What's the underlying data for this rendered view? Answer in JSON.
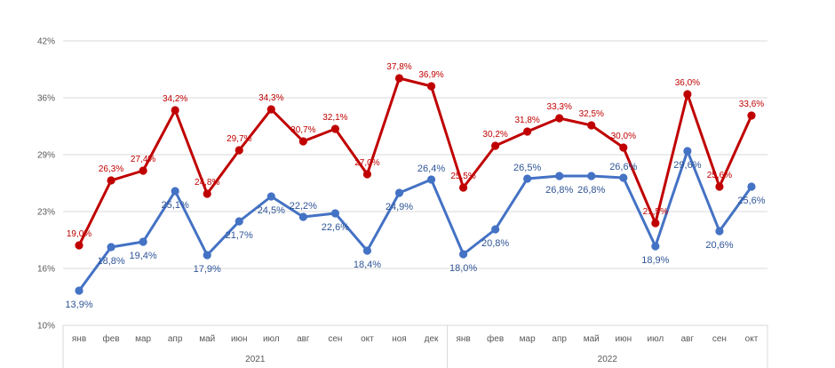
{
  "chart_data": {
    "type": "line",
    "title": "",
    "xlabel": "",
    "ylabel": "",
    "ylim": [
      10,
      42
    ],
    "y_ticks": [
      {
        "value": 10,
        "label": "10%"
      },
      {
        "value": 16.4,
        "label": "16%"
      },
      {
        "value": 22.8,
        "label": "23%"
      },
      {
        "value": 29.2,
        "label": "29%"
      },
      {
        "value": 35.6,
        "label": "36%"
      },
      {
        "value": 42,
        "label": "42%"
      }
    ],
    "categories": [
      "янв",
      "фев",
      "мар",
      "апр",
      "май",
      "июн",
      "июл",
      "авг",
      "сен",
      "окт",
      "ноя",
      "дек",
      "янв",
      "фев",
      "мар",
      "апр",
      "май",
      "июн",
      "июл",
      "авг",
      "сен",
      "окт"
    ],
    "year_groups": [
      {
        "label": "2021",
        "start": 0,
        "end": 11
      },
      {
        "label": "2022",
        "start": 12,
        "end": 21
      }
    ],
    "series": [
      {
        "name": "series-red",
        "color": "#c00000",
        "values": [
          19.0,
          26.3,
          27.4,
          34.2,
          24.8,
          29.7,
          34.3,
          30.7,
          32.1,
          27.0,
          37.8,
          36.9,
          25.5,
          30.2,
          31.8,
          33.3,
          32.5,
          30.0,
          21.5,
          36.0,
          25.6,
          33.6
        ],
        "labels": [
          "19,0%",
          "26,3%",
          "27,4%",
          "34,2%",
          "24,8%",
          "29,7%",
          "34,3%",
          "30,7%",
          "32,1%",
          "27,0%",
          "37,8%",
          "36,9%",
          "25,5%",
          "30,2%",
          "31,8%",
          "33,3%",
          "32,5%",
          "30,0%",
          "21,5%",
          "36,0%",
          "25,6%",
          "33,6%"
        ]
      },
      {
        "name": "series-blue",
        "color": "#4472c4",
        "values": [
          13.9,
          18.8,
          19.4,
          25.1,
          17.9,
          21.7,
          24.5,
          22.2,
          22.6,
          18.4,
          24.9,
          26.4,
          18.0,
          20.8,
          26.5,
          26.8,
          26.8,
          26.6,
          18.9,
          29.6,
          20.6,
          25.6
        ],
        "labels": [
          "13,9%",
          "18,8%",
          "19,4%",
          "25,1%",
          "17,9%",
          "21,7%",
          "24,5%",
          "22,2%",
          "22,6%",
          "18,4%",
          "24,9%",
          "26,4%",
          "18,0%",
          "20,8%",
          "26,5%",
          "26,8%",
          "26,8%",
          "26,6%",
          "18,9%",
          "29,6%",
          "20,6%",
          "25,6%"
        ]
      }
    ]
  }
}
